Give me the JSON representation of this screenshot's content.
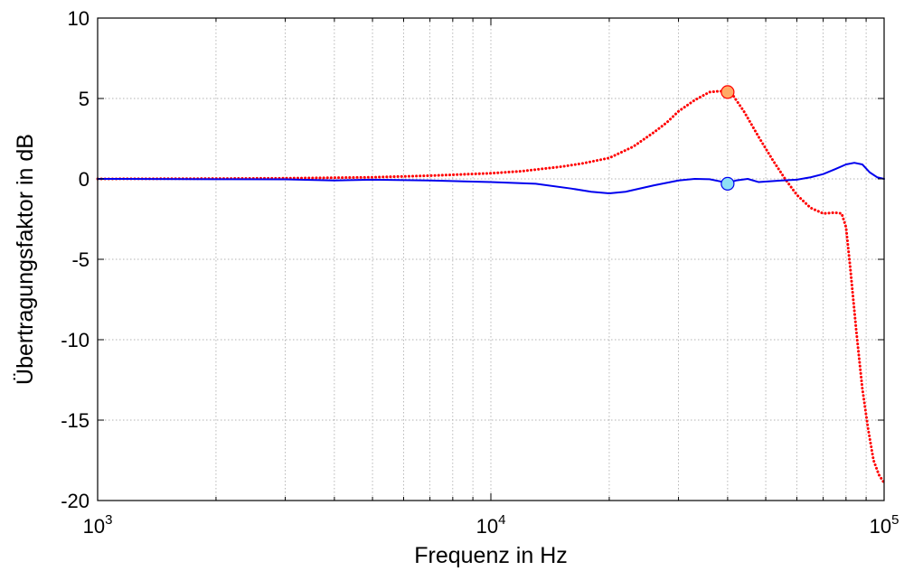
{
  "chart_data": {
    "type": "line",
    "title": "",
    "xlabel": "Frequenz in Hz",
    "ylabel": "Übertragungsfaktor in dB",
    "xscale": "log",
    "xlim": [
      1000,
      100000
    ],
    "ylim": [
      -20,
      10
    ],
    "grid": true,
    "legend": "none",
    "x_ticks": [
      {
        "value": 1000,
        "base": "10",
        "exp": "3"
      },
      {
        "value": 10000,
        "base": "10",
        "exp": "4"
      },
      {
        "value": 100000,
        "base": "10",
        "exp": "5"
      }
    ],
    "y_ticks": [
      {
        "value": 10,
        "label": "10"
      },
      {
        "value": 5,
        "label": "5"
      },
      {
        "value": 0,
        "label": "0"
      },
      {
        "value": -5,
        "label": "-5"
      },
      {
        "value": -10,
        "label": "-10"
      },
      {
        "value": -15,
        "label": "-15"
      },
      {
        "value": -20,
        "label": "-20"
      }
    ],
    "series": [
      {
        "color": "#ff0000",
        "style": "dotted",
        "points": [
          [
            1000,
            0
          ],
          [
            2000,
            0.02
          ],
          [
            3000,
            0.04
          ],
          [
            5000,
            0.1
          ],
          [
            7000,
            0.2
          ],
          [
            10000,
            0.35
          ],
          [
            12000,
            0.48
          ],
          [
            15000,
            0.75
          ],
          [
            17000,
            0.95
          ],
          [
            20000,
            1.3
          ],
          [
            23000,
            2.0
          ],
          [
            26000,
            2.9
          ],
          [
            28000,
            3.5
          ],
          [
            30000,
            4.2
          ],
          [
            33000,
            4.9
          ],
          [
            36000,
            5.4
          ],
          [
            38000,
            5.45
          ],
          [
            40000,
            5.45
          ],
          [
            41000,
            5.3
          ],
          [
            44000,
            4.2
          ],
          [
            48000,
            2.6
          ],
          [
            52000,
            1.2
          ],
          [
            56000,
            0.0
          ],
          [
            60000,
            -1.0
          ],
          [
            65000,
            -1.8
          ],
          [
            70000,
            -2.15
          ],
          [
            75000,
            -2.1
          ],
          [
            78000,
            -2.15
          ],
          [
            80000,
            -3.0
          ],
          [
            82000,
            -5.5
          ],
          [
            85000,
            -9.5
          ],
          [
            88000,
            -13.0
          ],
          [
            91000,
            -15.5
          ],
          [
            94000,
            -17.5
          ],
          [
            97000,
            -18.4
          ],
          [
            100000,
            -18.9
          ]
        ]
      },
      {
        "color": "#0000ee",
        "style": "solid",
        "points": [
          [
            1000,
            0
          ],
          [
            2000,
            -0.02
          ],
          [
            3000,
            -0.03
          ],
          [
            4000,
            -0.1
          ],
          [
            5000,
            -0.05
          ],
          [
            7000,
            -0.1
          ],
          [
            10000,
            -0.2
          ],
          [
            13000,
            -0.3
          ],
          [
            16000,
            -0.6
          ],
          [
            18000,
            -0.8
          ],
          [
            20000,
            -0.9
          ],
          [
            22000,
            -0.8
          ],
          [
            26000,
            -0.4
          ],
          [
            30000,
            -0.1
          ],
          [
            33000,
            0.0
          ],
          [
            36000,
            -0.02
          ],
          [
            40000,
            -0.25
          ],
          [
            42000,
            -0.1
          ],
          [
            45000,
            0.0
          ],
          [
            48000,
            -0.2
          ],
          [
            55000,
            -0.1
          ],
          [
            60000,
            -0.05
          ],
          [
            65000,
            0.1
          ],
          [
            70000,
            0.3
          ],
          [
            75000,
            0.6
          ],
          [
            80000,
            0.9
          ],
          [
            84000,
            1.0
          ],
          [
            88000,
            0.9
          ],
          [
            92000,
            0.4
          ],
          [
            96000,
            0.1
          ],
          [
            100000,
            0.0
          ]
        ]
      }
    ],
    "markers": [
      {
        "x": 40000,
        "y": 5.4,
        "fill": "#ffaa66",
        "stroke": "#ff0000"
      },
      {
        "x": 40000,
        "y": -0.3,
        "fill": "#8ee0f5",
        "stroke": "#0000ee"
      }
    ]
  }
}
